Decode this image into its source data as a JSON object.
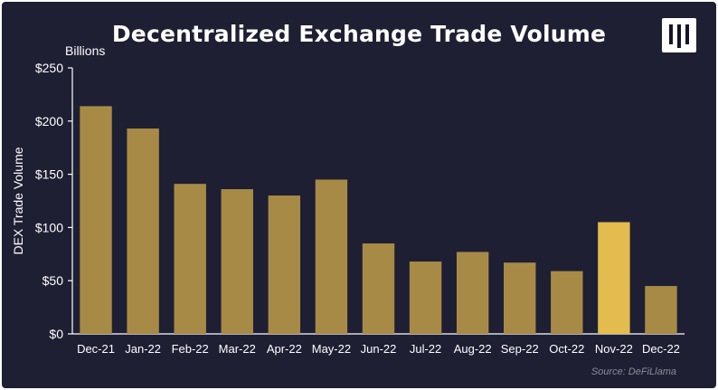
{
  "brand": {
    "logo_icon": "pantera-logo-icon"
  },
  "chart_data": {
    "type": "bar",
    "title": "Decentralized Exchange Trade Volume",
    "units_label": "Billions",
    "ylabel": "DEX Trade Volume",
    "xlabel": "",
    "source": "Source: DeFiLlama",
    "categories": [
      "Dec-21",
      "Jan-22",
      "Feb-22",
      "Mar-22",
      "Apr-22",
      "May-22",
      "Jun-22",
      "Jul-22",
      "Aug-22",
      "Sep-22",
      "Oct-22",
      "Nov-22",
      "Dec-22"
    ],
    "values": [
      214,
      193,
      141,
      136,
      130,
      145,
      85,
      68,
      77,
      67,
      59,
      105,
      45
    ],
    "highlight_index": 11,
    "ylim": [
      0,
      250
    ],
    "yticks": [
      0,
      50,
      100,
      150,
      200,
      250
    ],
    "ytick_labels": [
      "$0",
      "$50",
      "$100",
      "$150",
      "$200",
      "$250"
    ],
    "grid": false,
    "legend": "none",
    "colors": {
      "bar": "#a88a47",
      "highlight": "#e3bb4f",
      "background": "#1e1f33",
      "text": "#ffffff",
      "axis": "#ffffff",
      "source": "#8b8c9c"
    }
  }
}
